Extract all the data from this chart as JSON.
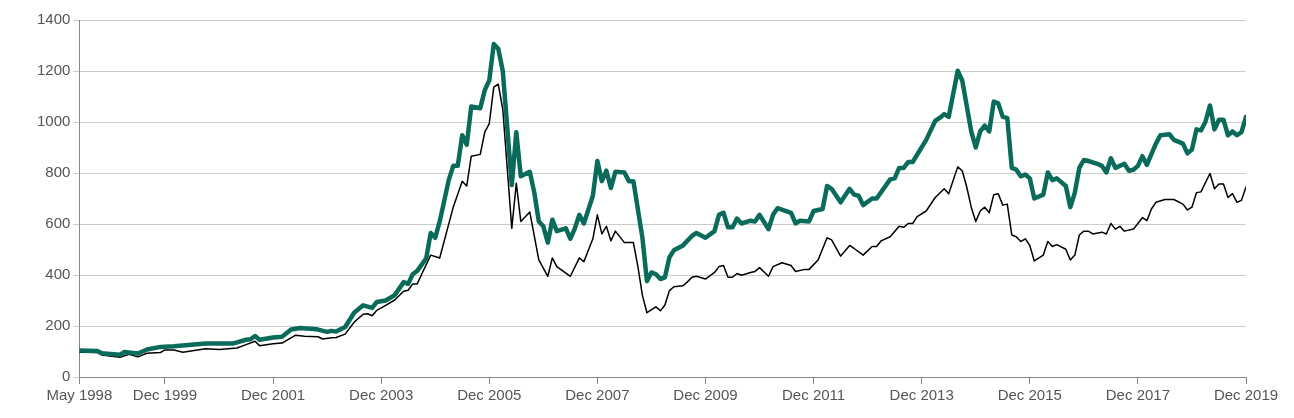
{
  "chart_data": {
    "type": "line",
    "xlim": [
      "1998-05",
      "2019-12"
    ],
    "xticks": [
      {
        "value": "1998-05",
        "label": "May 1998"
      },
      {
        "value": "1999-12",
        "label": "Dec 1999"
      },
      {
        "value": "2001-12",
        "label": "Dec 2001"
      },
      {
        "value": "2003-12",
        "label": "Dec 2003"
      },
      {
        "value": "2005-12",
        "label": "Dec 2005"
      },
      {
        "value": "2007-12",
        "label": "Dec 2007"
      },
      {
        "value": "2009-12",
        "label": "Dec 2009"
      },
      {
        "value": "2011-12",
        "label": "Dec 2011"
      },
      {
        "value": "2013-12",
        "label": "Dec 2013"
      },
      {
        "value": "2015-12",
        "label": "Dec 2015"
      },
      {
        "value": "2017-12",
        "label": "Dec 2017"
      },
      {
        "value": "2019-12",
        "label": "Dec 2019"
      }
    ],
    "ylim": [
      0,
      1400
    ],
    "yticks": [
      0,
      200,
      400,
      600,
      800,
      1000,
      1200,
      1400
    ],
    "grid": "y",
    "marker": "none",
    "line_style": "solid",
    "series": [
      {
        "color": "#0a6b5b",
        "x": [
          "1998-05",
          "1998-09",
          "1998-10",
          "1999-02",
          "1999-03",
          "1999-06",
          "1999-08",
          "1999-11",
          "2000-02",
          "2000-09",
          "2001-03",
          "2001-04",
          "2001-06",
          "2001-07",
          "2001-08",
          "2001-09",
          "2001-12",
          "2002-02",
          "2002-04",
          "2002-06",
          "2002-09",
          "2002-10",
          "2002-12",
          "2003-01",
          "2003-02",
          "2003-04",
          "2003-06",
          "2003-08",
          "2003-10",
          "2003-11",
          "2004-01",
          "2004-03",
          "2004-05",
          "2004-06",
          "2004-07",
          "2004-08",
          "2004-10",
          "2004-11",
          "2004-12",
          "2005-01",
          "2005-03",
          "2005-04",
          "2005-05",
          "2005-06",
          "2005-07",
          "2005-08",
          "2005-10",
          "2005-11",
          "2005-12",
          "2006-01",
          "2006-02",
          "2006-03",
          "2006-05",
          "2006-06",
          "2006-07",
          "2006-09",
          "2006-10",
          "2006-11",
          "2006-12",
          "2007-01",
          "2007-02",
          "2007-03",
          "2007-05",
          "2007-06",
          "2007-07",
          "2007-08",
          "2007-09",
          "2007-11",
          "2007-12",
          "2008-01",
          "2008-02",
          "2008-03",
          "2008-04",
          "2008-06",
          "2008-07",
          "2008-08",
          "2008-10",
          "2008-11",
          "2008-12",
          "2009-01",
          "2009-02",
          "2009-03",
          "2009-04",
          "2009-05",
          "2009-07",
          "2009-09",
          "2009-10",
          "2009-12",
          "2010-02",
          "2010-03",
          "2010-04",
          "2010-05",
          "2010-06",
          "2010-07",
          "2010-08",
          "2010-10",
          "2010-11",
          "2010-12",
          "2011-02",
          "2011-03",
          "2011-04",
          "2011-07",
          "2011-08",
          "2011-09",
          "2011-11",
          "2011-12",
          "2012-02",
          "2012-03",
          "2012-04",
          "2012-06",
          "2012-08",
          "2012-09",
          "2012-10",
          "2012-11",
          "2013-01",
          "2013-02",
          "2013-05",
          "2013-06",
          "2013-07",
          "2013-08",
          "2013-09",
          "2013-10",
          "2014-01",
          "2014-03",
          "2014-04",
          "2014-05",
          "2014-06",
          "2014-08",
          "2014-09",
          "2014-11",
          "2014-12",
          "2015-01",
          "2015-02",
          "2015-03",
          "2015-04",
          "2015-05",
          "2015-06",
          "2015-07",
          "2015-08",
          "2015-09",
          "2015-10",
          "2015-11",
          "2015-12",
          "2016-01",
          "2016-03",
          "2016-04",
          "2016-05",
          "2016-06",
          "2016-08",
          "2016-09",
          "2016-10",
          "2016-11",
          "2016-12",
          "2017-01",
          "2017-03",
          "2017-04",
          "2017-05",
          "2017-06",
          "2017-07",
          "2017-09",
          "2017-10",
          "2017-11",
          "2017-12",
          "2018-01",
          "2018-02",
          "2018-04",
          "2018-05",
          "2018-07",
          "2018-08",
          "2018-10",
          "2018-11",
          "2018-12",
          "2019-01",
          "2019-02",
          "2019-03",
          "2019-04",
          "2019-05",
          "2019-06",
          "2019-07",
          "2019-08",
          "2019-09",
          "2019-10",
          "2019-11",
          "2019-12"
        ],
        "values": [
          104,
          102,
          93,
          87,
          98,
          92,
          108,
          118,
          121,
          131,
          131,
          136,
          146,
          148,
          161,
          146,
          155,
          158,
          186,
          192,
          188,
          186,
          177,
          181,
          178,
          196,
          252,
          281,
          271,
          294,
          300,
          321,
          372,
          365,
          403,
          416,
          465,
          565,
          546,
          610,
          772,
          828,
          828,
          948,
          911,
          1061,
          1054,
          1125,
          1163,
          1306,
          1287,
          1200,
          753,
          960,
          787,
          805,
          723,
          610,
          591,
          527,
          617,
          572,
          583,
          542,
          583,
          636,
          602,
          711,
          847,
          768,
          809,
          741,
          805,
          802,
          768,
          768,
          546,
          376,
          410,
          403,
          384,
          391,
          470,
          497,
          516,
          553,
          565,
          546,
          572,
          636,
          644,
          587,
          587,
          621,
          602,
          613,
          610,
          636,
          580,
          636,
          662,
          644,
          602,
          613,
          610,
          651,
          659,
          749,
          738,
          685,
          738,
          715,
          711,
          674,
          700,
          700,
          775,
          779,
          820,
          820,
          843,
          843,
          930,
          1004,
          1016,
          1031,
          1020,
          1201,
          1163,
          963,
          900,
          963,
          986,
          963,
          1080,
          1073,
          1020,
          1016,
          820,
          813,
          787,
          794,
          779,
          700,
          715,
          802,
          772,
          779,
          749,
          666,
          723,
          820,
          851,
          847,
          836,
          828,
          802,
          858,
          820,
          836,
          809,
          813,
          828,
          866,
          832,
          915,
          948,
          952,
          930,
          915,
          877,
          892,
          971,
          967,
          1001,
          1065,
          971,
          1009,
          1009,
          948,
          963,
          948,
          960,
          1020
        ]
      },
      {
        "color": "#000000",
        "x": [
          "1998-05",
          "1998-09",
          "1998-10",
          "1999-02",
          "1999-04",
          "1999-06",
          "1999-08",
          "1999-11",
          "1999-12",
          "2000-02",
          "2000-04",
          "2000-09",
          "2000-12",
          "2001-04",
          "2001-06",
          "2001-08",
          "2001-09",
          "2001-12",
          "2002-02",
          "2002-05",
          "2002-07",
          "2002-10",
          "2002-11",
          "2003-01",
          "2003-02",
          "2003-04",
          "2003-06",
          "2003-08",
          "2003-09",
          "2003-10",
          "2003-11",
          "2004-01",
          "2004-03",
          "2004-05",
          "2004-06",
          "2004-07",
          "2004-08",
          "2004-09",
          "2004-11",
          "2005-01",
          "2005-04",
          "2005-06",
          "2005-07",
          "2005-08",
          "2005-10",
          "2005-11",
          "2005-12",
          "2006-01",
          "2006-02",
          "2006-03",
          "2006-05",
          "2006-06",
          "2006-07",
          "2006-09",
          "2006-11",
          "2007-01",
          "2007-02",
          "2007-03",
          "2007-06",
          "2007-08",
          "2007-09",
          "2007-11",
          "2007-12",
          "2008-01",
          "2008-02",
          "2008-03",
          "2008-04",
          "2008-06",
          "2008-08",
          "2008-09",
          "2008-10",
          "2008-11",
          "2009-01",
          "2009-02",
          "2009-03",
          "2009-04",
          "2009-05",
          "2009-07",
          "2009-08",
          "2009-09",
          "2009-10",
          "2009-12",
          "2010-02",
          "2010-03",
          "2010-04",
          "2010-05",
          "2010-06",
          "2010-07",
          "2010-08",
          "2010-10",
          "2010-11",
          "2010-12",
          "2011-02",
          "2011-03",
          "2011-05",
          "2011-07",
          "2011-08",
          "2011-10",
          "2011-11",
          "2012-01",
          "2012-03",
          "2012-04",
          "2012-06",
          "2012-08",
          "2012-09",
          "2012-11",
          "2013-01",
          "2013-02",
          "2013-03",
          "2013-05",
          "2013-07",
          "2013-08",
          "2013-09",
          "2013-10",
          "2013-11",
          "2014-01",
          "2014-03",
          "2014-05",
          "2014-06",
          "2014-08",
          "2014-09",
          "2014-10",
          "2014-11",
          "2014-12",
          "2015-01",
          "2015-02",
          "2015-03",
          "2015-04",
          "2015-05",
          "2015-06",
          "2015-07",
          "2015-08",
          "2015-09",
          "2015-10",
          "2015-11",
          "2015-12",
          "2016-01",
          "2016-03",
          "2016-04",
          "2016-05",
          "2016-06",
          "2016-08",
          "2016-09",
          "2016-10",
          "2016-11",
          "2016-12",
          "2017-01",
          "2017-02",
          "2017-04",
          "2017-05",
          "2017-06",
          "2017-07",
          "2017-08",
          "2017-09",
          "2017-11",
          "2017-12",
          "2018-01",
          "2018-02",
          "2018-03",
          "2018-04",
          "2018-06",
          "2018-08",
          "2018-10",
          "2018-11",
          "2018-12",
          "2019-01",
          "2019-02",
          "2019-04",
          "2019-05",
          "2019-06",
          "2019-07",
          "2019-08",
          "2019-09",
          "2019-10",
          "2019-11",
          "2019-12"
        ],
        "values": [
          97,
          96,
          86,
          77,
          89,
          79,
          93,
          96,
          106,
          106,
          97,
          111,
          108,
          114,
          127,
          140,
          123,
          130,
          133,
          164,
          160,
          158,
          149,
          154,
          155,
          168,
          215,
          246,
          248,
          240,
          261,
          281,
          302,
          336,
          340,
          365,
          365,
          403,
          478,
          467,
          666,
          768,
          749,
          866,
          873,
          960,
          994,
          1137,
          1148,
          1050,
          583,
          760,
          610,
          647,
          459,
          395,
          467,
          433,
          395,
          467,
          452,
          542,
          636,
          561,
          591,
          534,
          572,
          527,
          527,
          433,
          320,
          252,
          275,
          260,
          282,
          339,
          354,
          358,
          373,
          391,
          395,
          384,
          410,
          433,
          437,
          391,
          391,
          406,
          399,
          410,
          414,
          429,
          395,
          433,
          448,
          437,
          414,
          422,
          422,
          459,
          546,
          538,
          474,
          516,
          504,
          478,
          512,
          512,
          534,
          550,
          591,
          587,
          602,
          602,
          629,
          651,
          704,
          738,
          719,
          824,
          809,
          745,
          666,
          610,
          651,
          666,
          644,
          715,
          719,
          674,
          678,
          557,
          550,
          531,
          542,
          516,
          455,
          478,
          531,
          512,
          519,
          501,
          459,
          478,
          557,
          572,
          572,
          561,
          568,
          561,
          602,
          580,
          591,
          572,
          580,
          602,
          625,
          613,
          659,
          685,
          696,
          696,
          678,
          655,
          666,
          723,
          726,
          798,
          738,
          757,
          757,
          704,
          719,
          685,
          693,
          745
        ]
      }
    ]
  }
}
